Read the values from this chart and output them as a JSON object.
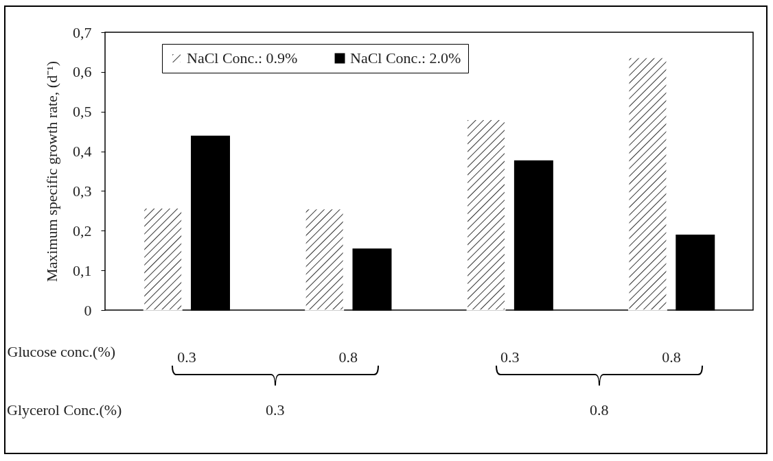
{
  "chart_data": {
    "type": "bar",
    "categories": [
      "0.3",
      "0.8",
      "0.3",
      "0.8"
    ],
    "xlabel": "Glucose conc.(%)",
    "ylabel": "Maximum specific growth rate, (d⁻¹)",
    "series": [
      {
        "name": "NaCl Conc.: 0.9%",
        "color": "#ffffff",
        "values": [
          0.257,
          0.255,
          0.48,
          0.636
        ]
      },
      {
        "name": "NaCl Conc.: 2.0%",
        "color": "#000000",
        "values": [
          0.438,
          0.154,
          0.376,
          0.189
        ]
      }
    ],
    "ylim": [
      0,
      0.7
    ],
    "yticks": [
      0,
      {
        "value": 0.1,
        "label": "0,1"
      },
      {
        "value": 0.2,
        "label": "0,2"
      },
      {
        "value": 0.3,
        "label": "0,3"
      },
      {
        "value": 0.4,
        "label": "0,4"
      },
      {
        "value": 0.5,
        "label": "0,5"
      },
      {
        "value": 0.6,
        "label": "0,6"
      },
      {
        "value": 0.7,
        "label": "0,7"
      }
    ],
    "grid": false,
    "legend": "top",
    "annotations": [
      "Glycerol Conc.(%)",
      "0.3",
      "0.8"
    ]
  }
}
